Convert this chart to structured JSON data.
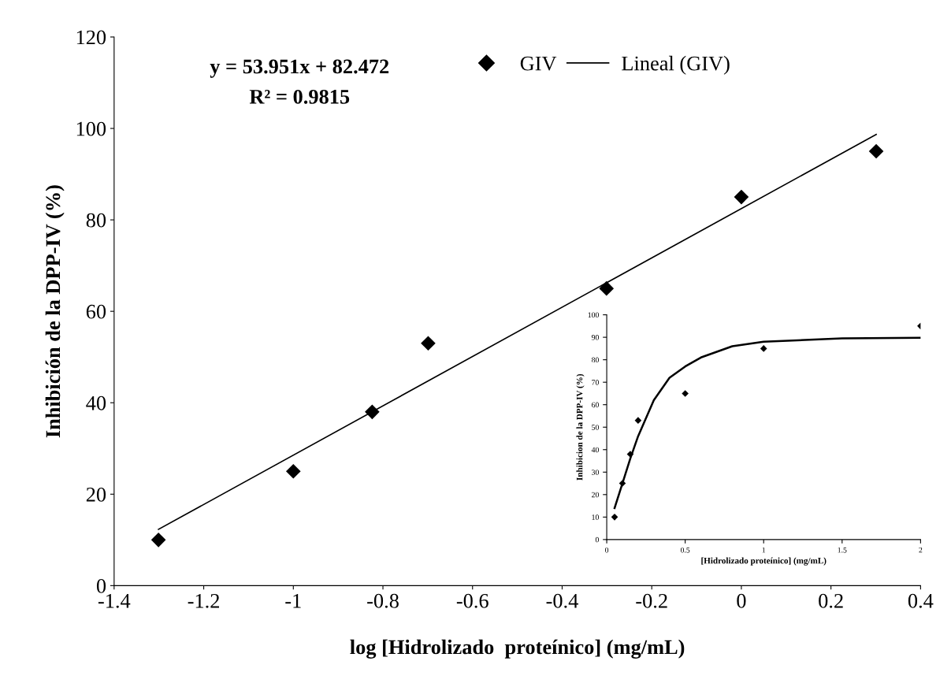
{
  "chart_data": [
    {
      "type": "scatter",
      "xlabel": "log [Hidrolizado  proteínico] (mg/mL)",
      "ylabel": "Inhibición de la DPP-IV (%)",
      "annotations": [
        "y = 53.951x + 82.472",
        "R² = 0.9815"
      ],
      "xlim": [
        -1.4,
        0.4
      ],
      "xticks": [
        -1.4,
        -1.2,
        -1,
        -0.8,
        -0.6,
        -0.4,
        -0.2,
        0,
        0.2,
        0.4
      ],
      "ylim": [
        0,
        120
      ],
      "yticks": [
        0,
        20,
        40,
        60,
        80,
        100,
        120
      ],
      "grid": false,
      "legend": "top",
      "series": [
        {
          "name": "GIV",
          "marker": "diamond",
          "color": "#000000",
          "x": [
            -1.301,
            -1,
            -0.824,
            -0.699,
            -0.301,
            0,
            0.301
          ],
          "values": [
            10,
            25,
            38,
            53,
            65,
            85,
            95
          ]
        },
        {
          "name": "Lineal (GIV)",
          "type": "line",
          "color": "#000000",
          "x": [
            -1.301,
            0.301
          ],
          "values": [
            12.3,
            98.7
          ],
          "marker": "none"
        }
      ]
    },
    {
      "type": "scatter",
      "xlabel": "[Hidrolizado proteínico] (mg/mL)",
      "ylabel": "Inhibicion de la DPP-IV (%)",
      "xlim": [
        0,
        2
      ],
      "xticks": [
        0,
        0.5,
        1,
        1.5,
        2
      ],
      "ylim": [
        0,
        100
      ],
      "yticks": [
        0,
        10,
        20,
        30,
        40,
        50,
        60,
        70,
        80,
        90,
        100
      ],
      "grid": false,
      "series": [
        {
          "marker": "diamond",
          "color": "#000000",
          "x": [
            0.05,
            0.1,
            0.15,
            0.2,
            0.5,
            1,
            2
          ],
          "values": [
            10,
            25,
            38,
            53,
            65,
            85,
            95
          ]
        },
        {
          "type": "line",
          "color": "#000000",
          "x": [
            0.05,
            0.1,
            0.15,
            0.2,
            0.3,
            0.4,
            0.5,
            0.6,
            0.8,
            1,
            1.5,
            2
          ],
          "values": [
            14,
            25,
            36,
            46,
            62,
            72,
            77,
            81,
            86,
            88,
            89.5,
            89.8
          ],
          "marker": "none"
        }
      ]
    }
  ]
}
